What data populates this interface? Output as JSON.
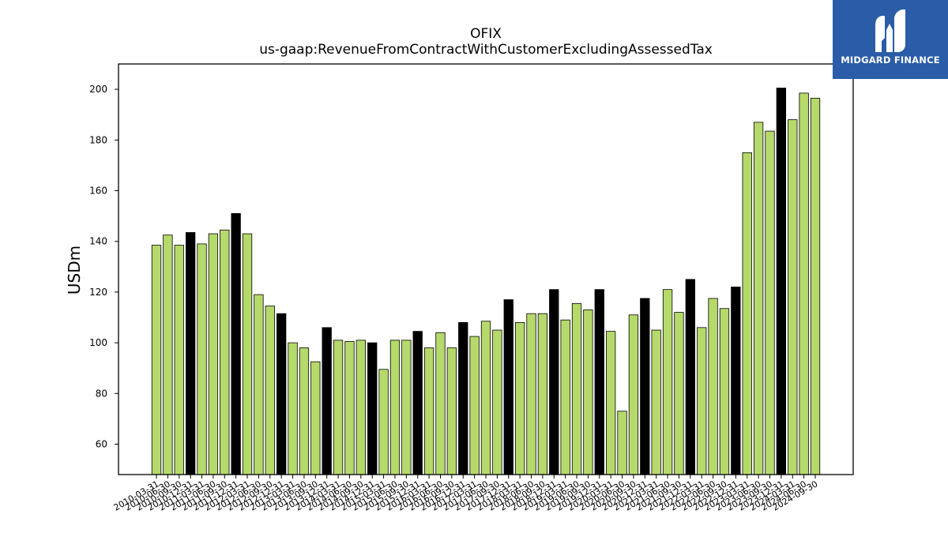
{
  "chart_data": {
    "type": "bar",
    "title": "OFIX",
    "subtitle": "us-gaap:RevenueFromContractWithCustomerExcludingAssessedTax",
    "ylabel": "USDm",
    "xlabel": "",
    "ylim": [
      48,
      210
    ],
    "yticks": [
      60,
      80,
      100,
      120,
      140,
      160,
      180,
      200
    ],
    "colors": {
      "quarter": "#b5d96b",
      "year_end": "#000000",
      "edge": "#000000"
    },
    "categories": [
      "2010-03-31",
      "2010-06-30",
      "2010-09-30",
      "2010-12-31",
      "2011-03-31",
      "2011-06-30",
      "2011-09-30",
      "2011-12-31",
      "2012-03-31",
      "2012-06-30",
      "2012-09-30",
      "2012-12-31",
      "2013-03-31",
      "2013-06-30",
      "2013-09-30",
      "2013-12-31",
      "2014-03-31",
      "2014-06-30",
      "2014-09-30",
      "2014-12-31",
      "2015-03-31",
      "2015-06-30",
      "2015-09-30",
      "2015-12-31",
      "2016-03-31",
      "2016-06-30",
      "2016-09-30",
      "2016-12-31",
      "2017-03-31",
      "2017-06-30",
      "2017-09-30",
      "2017-12-31",
      "2018-03-31",
      "2018-06-30",
      "2018-09-30",
      "2018-12-31",
      "2019-03-31",
      "2019-06-30",
      "2019-09-30",
      "2019-12-31",
      "2020-03-31",
      "2020-06-30",
      "2020-09-30",
      "2020-12-31",
      "2021-03-31",
      "2021-06-30",
      "2021-09-30",
      "2021-12-31",
      "2022-03-31",
      "2022-06-30",
      "2022-09-30",
      "2022-12-31",
      "2023-03-31",
      "2023-06-30",
      "2023-09-30",
      "2023-12-31",
      "2024-03-31",
      "2024-06-30",
      "2024-09-30"
    ],
    "values": [
      138.5,
      142.5,
      138.5,
      143.5,
      139,
      143,
      144.5,
      151,
      143,
      119,
      114.5,
      111.5,
      100,
      98,
      92.5,
      106,
      101,
      100.5,
      101,
      100,
      89.5,
      101,
      101,
      104.5,
      98,
      104,
      98,
      108,
      102.5,
      108.5,
      105,
      117,
      108,
      111.5,
      111.5,
      121,
      109,
      115.5,
      113,
      121,
      104.5,
      73,
      111,
      117.5,
      105,
      121,
      112,
      125,
      106,
      117.5,
      113.5,
      122,
      175,
      187,
      183.5,
      200.5,
      188,
      198.5,
      196.5
    ],
    "year_end_flags": [
      false,
      false,
      false,
      true,
      false,
      false,
      false,
      true,
      false,
      false,
      false,
      true,
      false,
      false,
      false,
      true,
      false,
      false,
      false,
      true,
      false,
      false,
      false,
      true,
      false,
      false,
      false,
      true,
      false,
      false,
      false,
      true,
      false,
      false,
      false,
      true,
      false,
      false,
      false,
      true,
      false,
      false,
      false,
      true,
      false,
      false,
      false,
      true,
      false,
      false,
      false,
      true,
      false,
      false,
      false,
      true,
      false,
      false,
      false
    ],
    "grid": false,
    "legend": "none"
  },
  "logo": {
    "text": "MIDGARD FINANCE"
  }
}
